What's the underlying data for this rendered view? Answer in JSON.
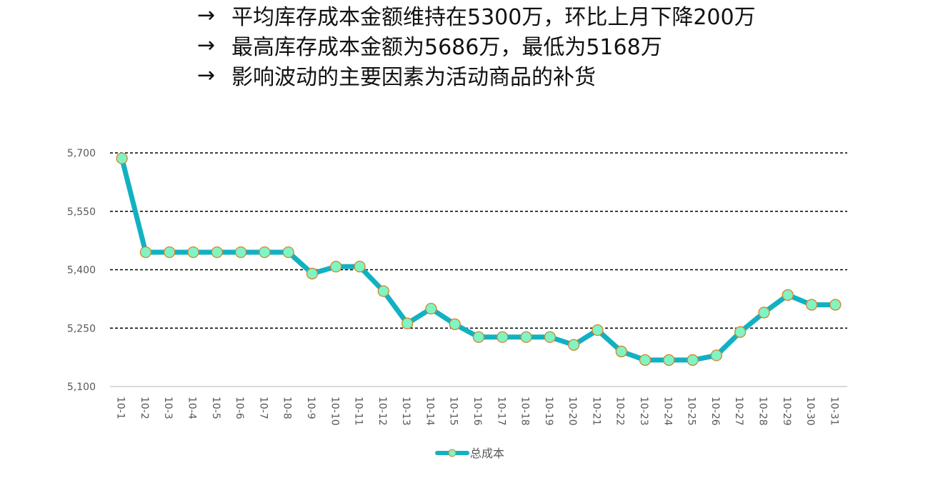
{
  "notes": [
    {
      "arrow": "→",
      "text": "平均库存成本金额维持在5300万，环比上月下降200万"
    },
    {
      "arrow": "→",
      "text": "最高库存成本金额为5686万，最低为5168万"
    },
    {
      "arrow": "→",
      "text": "影响波动的主要因素为活动商品的补货"
    }
  ],
  "chart_data": {
    "type": "line",
    "title": "",
    "xlabel": "",
    "ylabel": "",
    "categories": [
      "10-1",
      "10-2",
      "10-3",
      "10-4",
      "10-5",
      "10-6",
      "10-7",
      "10-8",
      "10-9",
      "10-10",
      "10-11",
      "10-12",
      "10-13",
      "10-14",
      "10-15",
      "10-16",
      "10-17",
      "10-18",
      "10-19",
      "10-20",
      "10-21",
      "10-22",
      "10-23",
      "10-24",
      "10-25",
      "10-26",
      "10-27",
      "10-28",
      "10-29",
      "10-30",
      "10-31"
    ],
    "series": [
      {
        "name": "总成本",
        "values": [
          5686,
          5445,
          5445,
          5445,
          5445,
          5445,
          5445,
          5445,
          5390,
          5408,
          5408,
          5345,
          5262,
          5300,
          5260,
          5227,
          5227,
          5227,
          5227,
          5207,
          5245,
          5190,
          5168,
          5168,
          5168,
          5180,
          5240,
          5290,
          5335,
          5310,
          5310
        ]
      }
    ],
    "ylim": [
      5100,
      5700
    ],
    "yticks": [
      5100,
      5250,
      5400,
      5550,
      5700
    ],
    "ytick_labels": [
      "5,100",
      "5,250",
      "5,400",
      "5,550",
      "5,700"
    ],
    "grid": true,
    "legend": "bottom",
    "colors": {
      "line": "#12b1c2",
      "marker_fill": "#7ff5c4",
      "marker_edge": "#d9822b",
      "grid": "#000000",
      "axis": "#d9d9d9"
    }
  }
}
